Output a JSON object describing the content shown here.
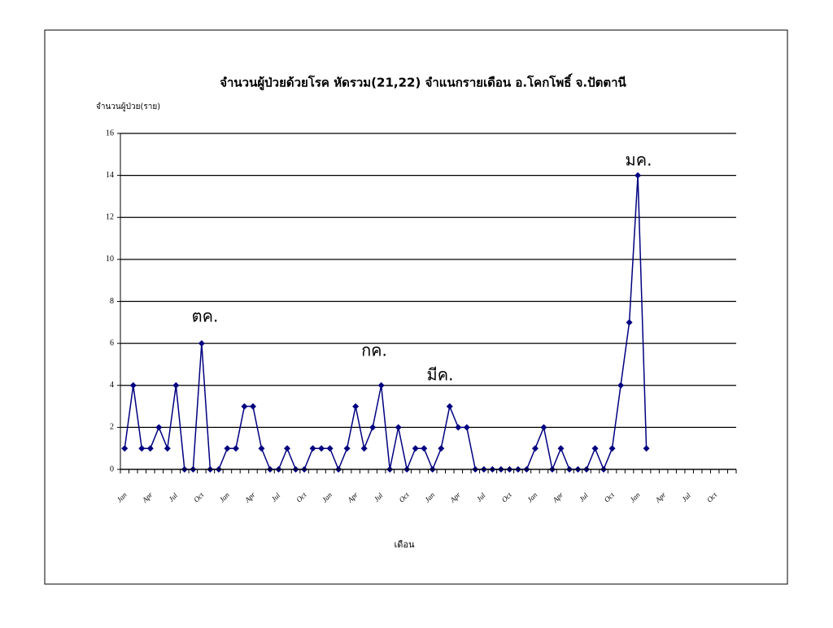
{
  "chart_data": {
    "type": "line",
    "title": "จำนวนผู้ป่วยด้วยโรค หัดรวม(21,22) จำแนกรายเดือน   อ.โคกโพธิ์ จ.ปัตตานี",
    "y_label": "จำนวนผู้ป่วย(ราย)",
    "x_label": "เดือน",
    "categories": [
      "Jan",
      null,
      null,
      "Apr",
      null,
      null,
      "Jul",
      null,
      null,
      "Oct",
      null,
      null,
      "Jan",
      null,
      null,
      "Apr",
      null,
      null,
      "Jul",
      null,
      null,
      "Oct",
      null,
      null,
      "Jan",
      null,
      null,
      "Apr",
      null,
      null,
      "Jul",
      null,
      null,
      "Oct",
      null,
      null,
      "Jan",
      null,
      null,
      "Apr",
      null,
      null,
      "Jul",
      null,
      null,
      "Oct",
      null,
      null,
      "Jan",
      null,
      null,
      "Apr",
      null,
      null,
      "Jul",
      null,
      null,
      "Oct",
      null,
      null,
      "Jan",
      null,
      null,
      "Apr",
      null,
      null,
      "Jul",
      null,
      null,
      "Oct",
      null,
      null
    ],
    "values": [
      1,
      4,
      1,
      1,
      2,
      1,
      4,
      0,
      0,
      6,
      0,
      0,
      1,
      1,
      3,
      3,
      1,
      0,
      0,
      1,
      0,
      0,
      1,
      1,
      1,
      0,
      1,
      3,
      1,
      2,
      4,
      0,
      2,
      0,
      1,
      1,
      0,
      1,
      3,
      2,
      2,
      0,
      0,
      0,
      0,
      0,
      0,
      0,
      1,
      2,
      0,
      1,
      0,
      0,
      0,
      1,
      0,
      1,
      4,
      7,
      14,
      1,
      null,
      null,
      null,
      null,
      null,
      null,
      null,
      null,
      null,
      null
    ],
    "color": "#000080",
    "ylim": [
      0,
      16
    ],
    "yticks": [
      0,
      2,
      4,
      6,
      8,
      10,
      12,
      14,
      16
    ],
    "grid": true,
    "annotations": [
      "ตค.",
      "กค.",
      "มีค.",
      "มค."
    ]
  }
}
